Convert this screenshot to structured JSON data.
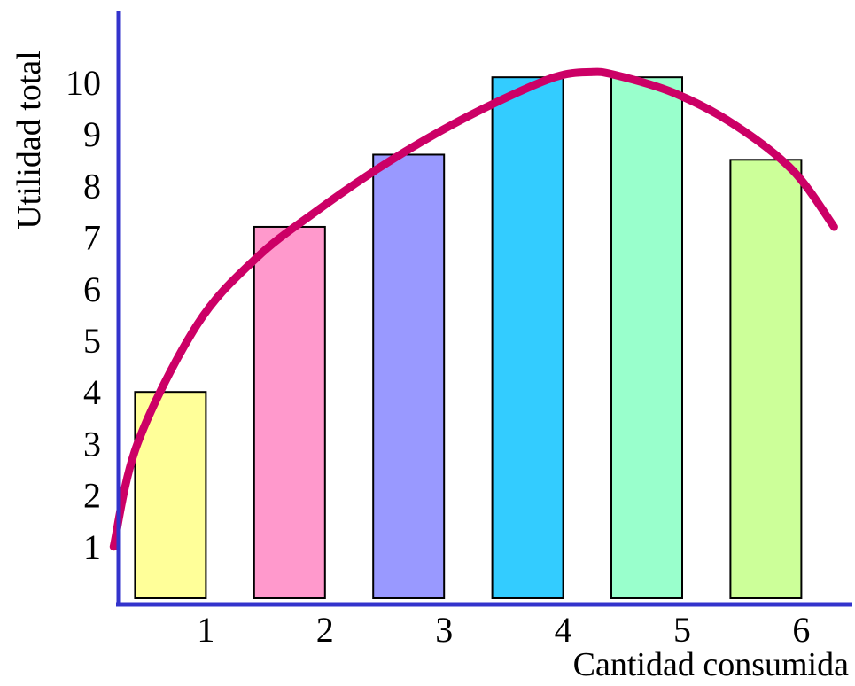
{
  "chart_data": {
    "type": "bar",
    "title": "",
    "xlabel": "Cantidad consumida",
    "ylabel": "Utilidad total",
    "categories": [
      "1",
      "2",
      "3",
      "4",
      "5",
      "6"
    ],
    "values": [
      4,
      7.2,
      8.6,
      10.1,
      10.1,
      8.5
    ],
    "yticks": [
      "1",
      "2",
      "3",
      "4",
      "5",
      "6",
      "7",
      "8",
      "9",
      "10"
    ],
    "ylim": [
      0,
      11
    ],
    "grid": false,
    "legend": "none",
    "bar_colors": [
      "#FFFF99",
      "#FF99CC",
      "#9999FF",
      "#33CCFF",
      "#99FFCC",
      "#CCFF99"
    ],
    "axis_color": "#3333CC",
    "curve": {
      "color": "#CC0066",
      "x": [
        0.3,
        0.5,
        1.0,
        1.5,
        2.0,
        2.5,
        3.0,
        3.5,
        4.0,
        4.3,
        4.5,
        5.0,
        5.5,
        6.0,
        6.35
      ],
      "y": [
        1.0,
        3.0,
        5.3,
        6.6,
        7.5,
        8.3,
        9.0,
        9.6,
        10.1,
        10.2,
        10.15,
        9.8,
        9.2,
        8.3,
        7.2
      ]
    }
  }
}
